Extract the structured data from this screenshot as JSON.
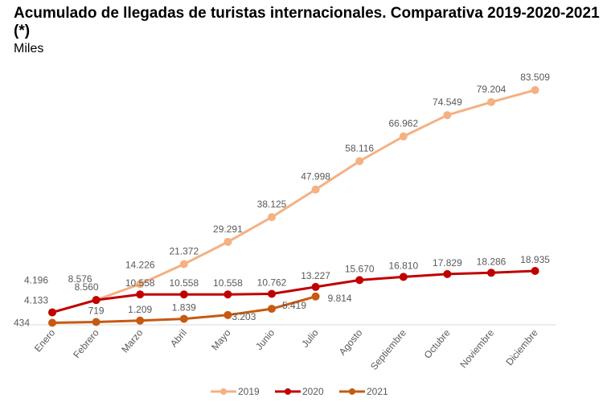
{
  "chart_data": {
    "type": "line",
    "title": "Acumulado de llegadas de turistas internacionales. Comparativa 2019-2020-2021 (*)",
    "subtitle": "Miles",
    "xlabel": "",
    "ylabel": "",
    "ylim": [
      0,
      85000
    ],
    "grid": false,
    "legend_position": "bottom",
    "categories": [
      "Enero",
      "Febrero",
      "Marzo",
      "Abril",
      "Mayo",
      "Junio",
      "Julio",
      "Agosto",
      "Septiembre",
      "Octubre",
      "Noviembre",
      "Diciembre"
    ],
    "series": [
      {
        "name": "2019",
        "color": "#F4B183",
        "values": [
          4196,
          8576,
          14226,
          21372,
          29291,
          38125,
          47998,
          58116,
          66962,
          74549,
          79204,
          83509
        ],
        "labels": [
          "4.196",
          "8.576",
          "14.226",
          "21.372",
          "29.291",
          "38.125",
          "47.998",
          "58.116",
          "66.962",
          "74.549",
          "79.204",
          "83.509"
        ]
      },
      {
        "name": "2020",
        "color": "#C00000",
        "values": [
          4133,
          8560,
          10558,
          10558,
          10558,
          10762,
          13227,
          15670,
          16810,
          17829,
          18286,
          18935
        ],
        "labels": [
          "4.133",
          "8.560",
          "10.558",
          "10.558",
          "10.558",
          "10.762",
          "13.227",
          "15.670",
          "16.810",
          "17.829",
          "18.286",
          "18.935"
        ]
      },
      {
        "name": "2021",
        "color": "#C55A11",
        "values": [
          434,
          719,
          1209,
          1839,
          3203,
          5419,
          9814
        ],
        "labels": [
          "434",
          "719",
          "1.209",
          "1.839",
          "3.203",
          "5.419",
          "9.814"
        ]
      }
    ]
  }
}
